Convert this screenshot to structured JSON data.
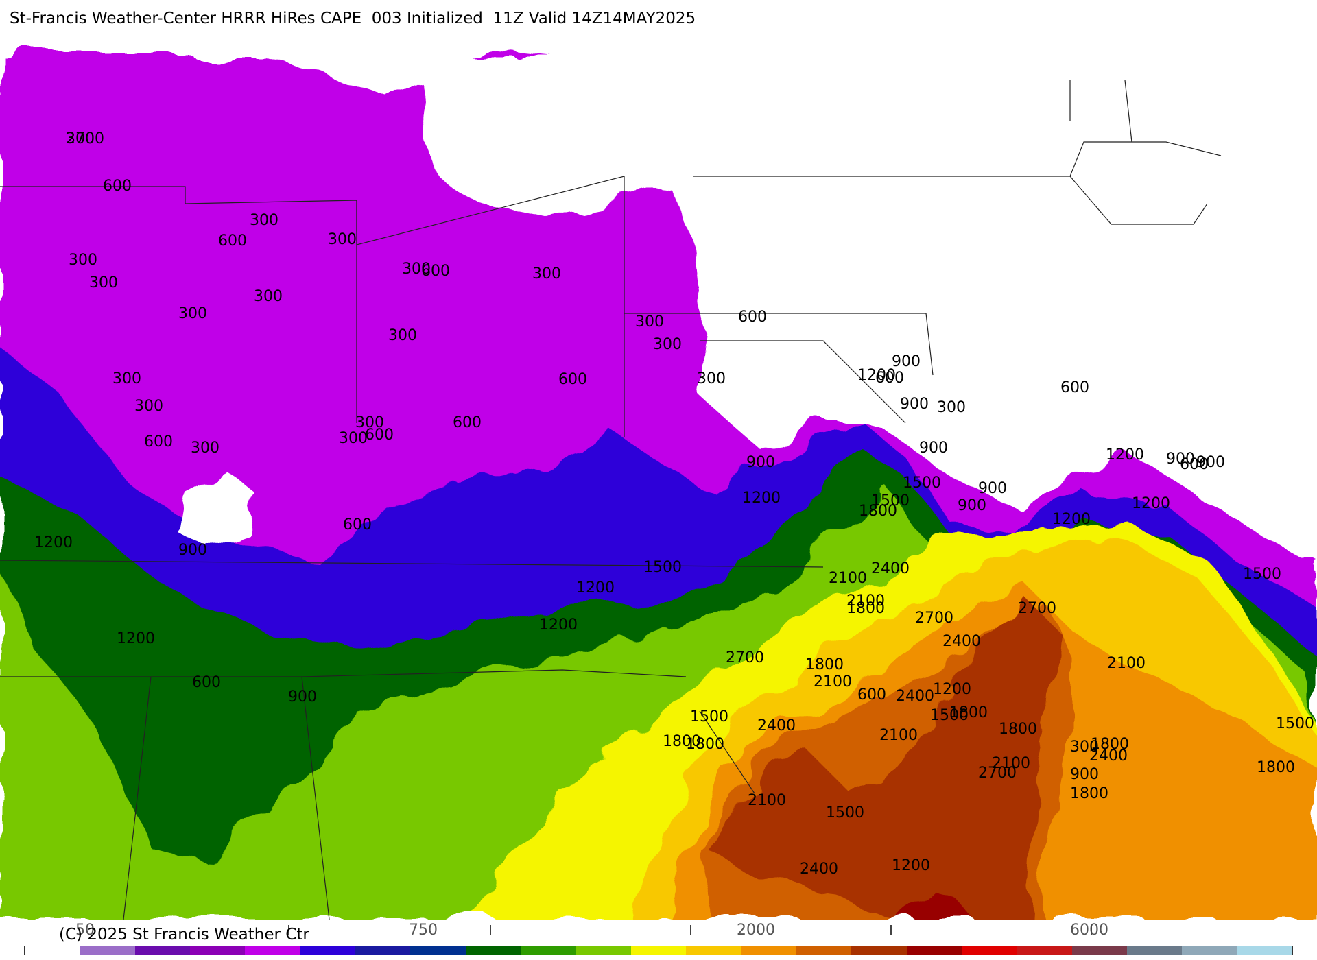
{
  "title": "St-Francis Weather-Center HRRR HiRes CAPE  003 Initialized  11Z Valid 14Z14MAY2025",
  "copyright": "(C) 2025 St Francis Weather Ctr",
  "scale_labels": [
    "50",
    "750",
    "2000",
    "6000"
  ],
  "colorbar": [
    "#ffffff",
    "#9b6ec8",
    "#6a0dad",
    "#8b00b5",
    "#c000e8",
    "#2d00d9",
    "#1a1aa0",
    "#003090",
    "#006400",
    "#2e9c00",
    "#78c800",
    "#f5f500",
    "#f8c800",
    "#f09000",
    "#d06000",
    "#a83200",
    "#980000",
    "#e00000",
    "#c81818",
    "#7a3a4a",
    "#6a7a8a",
    "#8fa8b8",
    "#a8d8e8"
  ],
  "contour_labels": [
    "300",
    "600",
    "300",
    "300",
    "600",
    "300",
    "300",
    "600",
    "300",
    "300",
    "300",
    "300",
    "300",
    "300",
    "300",
    "600",
    "300",
    "600",
    "300",
    "300",
    "300",
    "300",
    "600",
    "600",
    "300",
    "600",
    "900",
    "1200",
    "600",
    "900",
    "600",
    "900",
    "300",
    "600",
    "900",
    "900",
    "1200",
    "900",
    "1200",
    "900",
    "1200",
    "900",
    "600",
    "900",
    "1200",
    "600",
    "900",
    "1200",
    "1500",
    "1200",
    "1500",
    "1500",
    "1800",
    "1500",
    "1500",
    "1800",
    "2100",
    "2400",
    "2100",
    "2700",
    "1800",
    "2400",
    "2100",
    "2700",
    "2400",
    "1800",
    "2100",
    "2700",
    "2400",
    "1800",
    "1200",
    "900",
    "300",
    "1800",
    "1200",
    "1200",
    "1500",
    "1800",
    "2100",
    "1500",
    "2100",
    "2700",
    "2400",
    "1800",
    "1200",
    "600",
    "1500",
    "1800",
    "2100",
    "1800",
    "2400",
    "2700"
  ]
}
